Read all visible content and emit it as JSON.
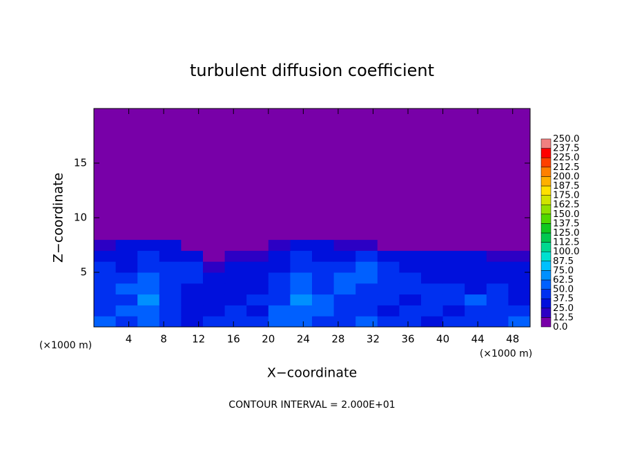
{
  "chart_data": {
    "type": "contour",
    "title": "turbulent diffusion coefficient",
    "xlabel": "X−coordinate",
    "ylabel": "Z−coordinate",
    "xlabel_unit": "(×1000 m)",
    "ylabel_unit": "(×1000 m)",
    "note": "CONTOUR INTERVAL = 2.000E+01",
    "xlim": [
      0,
      50
    ],
    "ylim": [
      0,
      20
    ],
    "xticks": [
      4,
      8,
      12,
      16,
      20,
      24,
      28,
      32,
      36,
      40,
      44,
      48
    ],
    "yticks": [
      5,
      10,
      15
    ],
    "x_bins": [
      0,
      2.5,
      5,
      7.5,
      10,
      12.5,
      15,
      17.5,
      20,
      22.5,
      25,
      27.5,
      30,
      32.5,
      35,
      37.5,
      40,
      42.5,
      45,
      47.5,
      50
    ],
    "z_bins": [
      0,
      1,
      2,
      3,
      4,
      5,
      6,
      7,
      8,
      20
    ],
    "values": [
      [
        50,
        45,
        55,
        40,
        35,
        40,
        45,
        40,
        50,
        55,
        45,
        40,
        50,
        45,
        40,
        35,
        40,
        45,
        40,
        50
      ],
      [
        45,
        50,
        60,
        40,
        35,
        30,
        40,
        35,
        55,
        60,
        50,
        45,
        40,
        35,
        45,
        40,
        35,
        45,
        40,
        40
      ],
      [
        40,
        45,
        65,
        40,
        30,
        30,
        35,
        40,
        45,
        65,
        50,
        40,
        45,
        40,
        35,
        45,
        40,
        50,
        45,
        35
      ],
      [
        40,
        50,
        55,
        45,
        35,
        30,
        30,
        35,
        40,
        55,
        45,
        50,
        45,
        40,
        45,
        40,
        40,
        35,
        40,
        35
      ],
      [
        45,
        40,
        50,
        45,
        40,
        25,
        30,
        30,
        40,
        50,
        45,
        50,
        55,
        45,
        40,
        35,
        35,
        30,
        35,
        30
      ],
      [
        40,
        35,
        45,
        40,
        45,
        20,
        25,
        25,
        35,
        45,
        40,
        45,
        50,
        40,
        35,
        30,
        30,
        35,
        30,
        25
      ],
      [
        30,
        35,
        40,
        35,
        30,
        10,
        15,
        20,
        30,
        40,
        35,
        30,
        40,
        35,
        30,
        30,
        25,
        30,
        20,
        15
      ],
      [
        20,
        30,
        30,
        25,
        10,
        0,
        0,
        0,
        20,
        30,
        25,
        15,
        20,
        10,
        10,
        5,
        5,
        5,
        5,
        0
      ],
      [
        0,
        0,
        0,
        0,
        0,
        0,
        0,
        0,
        0,
        0,
        0,
        0,
        0,
        0,
        0,
        0,
        0,
        0,
        0,
        0
      ]
    ],
    "colorbar": {
      "ticks": [
        {
          "value": 0,
          "label": "0.0"
        },
        12.5,
        {
          "value": 25,
          "label": "25.0"
        },
        37.5,
        {
          "value": 50,
          "label": "50.0"
        },
        62.5,
        {
          "value": 75,
          "label": "75.0"
        },
        87.5,
        {
          "value": 100,
          "label": "100.0"
        },
        112.5,
        {
          "value": 125,
          "label": "125.0"
        },
        137.5,
        {
          "value": 150,
          "label": "150.0"
        },
        162.5,
        {
          "value": 175,
          "label": "175.0"
        },
        187.5,
        {
          "value": 200,
          "label": "200.0"
        },
        212.5,
        {
          "value": 225,
          "label": "225.0"
        },
        237.5,
        {
          "value": 250,
          "label": "250.0"
        }
      ],
      "colors": [
        "#7800a8",
        "#2c00c4",
        "#0010dc",
        "#0030f0",
        "#0060ff",
        "#0090ff",
        "#00c0ff",
        "#00e0d0",
        "#00d890",
        "#00c850",
        "#10c820",
        "#50d800",
        "#90e000",
        "#d0e400",
        "#ffe000",
        "#ffb000",
        "#ff8000",
        "#ff4000",
        "#ff0000",
        "#f08080"
      ]
    }
  }
}
